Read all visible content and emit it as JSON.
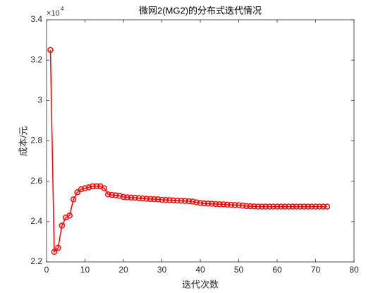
{
  "chart_data": {
    "type": "line",
    "title": "微网2(MG2)的分布式迭代情况",
    "x_label": "迭代次数",
    "y_label": "成本/元",
    "y_multiplier": "×10",
    "y_multiplier_exponent": "4",
    "x": [
      1,
      2,
      3,
      4,
      5,
      6,
      7,
      8,
      9,
      10,
      11,
      12,
      13,
      14,
      15,
      16,
      17,
      18,
      19,
      20,
      21,
      22,
      23,
      24,
      25,
      26,
      27,
      28,
      29,
      30,
      31,
      32,
      33,
      34,
      35,
      36,
      37,
      38,
      39,
      40,
      41,
      42,
      43,
      44,
      45,
      46,
      47,
      48,
      49,
      50,
      51,
      52,
      53,
      54,
      55,
      56,
      57,
      58,
      59,
      60,
      61,
      62,
      63,
      64,
      65,
      66,
      67,
      68,
      69,
      70,
      71,
      72,
      73
    ],
    "series": [
      {
        "color": "#ff0000",
        "marker": "circle",
        "values": [
          3.25,
          2.25,
          2.27,
          2.38,
          2.42,
          2.43,
          2.51,
          2.545,
          2.56,
          2.565,
          2.57,
          2.575,
          2.575,
          2.575,
          2.565,
          2.535,
          2.532,
          2.53,
          2.528,
          2.522,
          2.52,
          2.519,
          2.518,
          2.516,
          2.515,
          2.513,
          2.512,
          2.511,
          2.51,
          2.508,
          2.507,
          2.506,
          2.505,
          2.504,
          2.503,
          2.502,
          2.501,
          2.499,
          2.495,
          2.492,
          2.49,
          2.489,
          2.488,
          2.487,
          2.486,
          2.485,
          2.484,
          2.483,
          2.482,
          2.481,
          2.479,
          2.477,
          2.476,
          2.475,
          2.474,
          2.474,
          2.474,
          2.474,
          2.474,
          2.474,
          2.474,
          2.474,
          2.474,
          2.474,
          2.474,
          2.474,
          2.474,
          2.474,
          2.474,
          2.474,
          2.474,
          2.474,
          2.474
        ]
      }
    ],
    "xlim": [
      0,
      80
    ],
    "xticks": [
      0,
      10,
      20,
      30,
      40,
      50,
      60,
      70,
      80
    ],
    "ylim": [
      2.2,
      3.4
    ],
    "yticks": [
      2.2,
      2.4,
      2.6,
      2.8,
      3,
      3.2,
      3.4
    ],
    "grid": false
  }
}
